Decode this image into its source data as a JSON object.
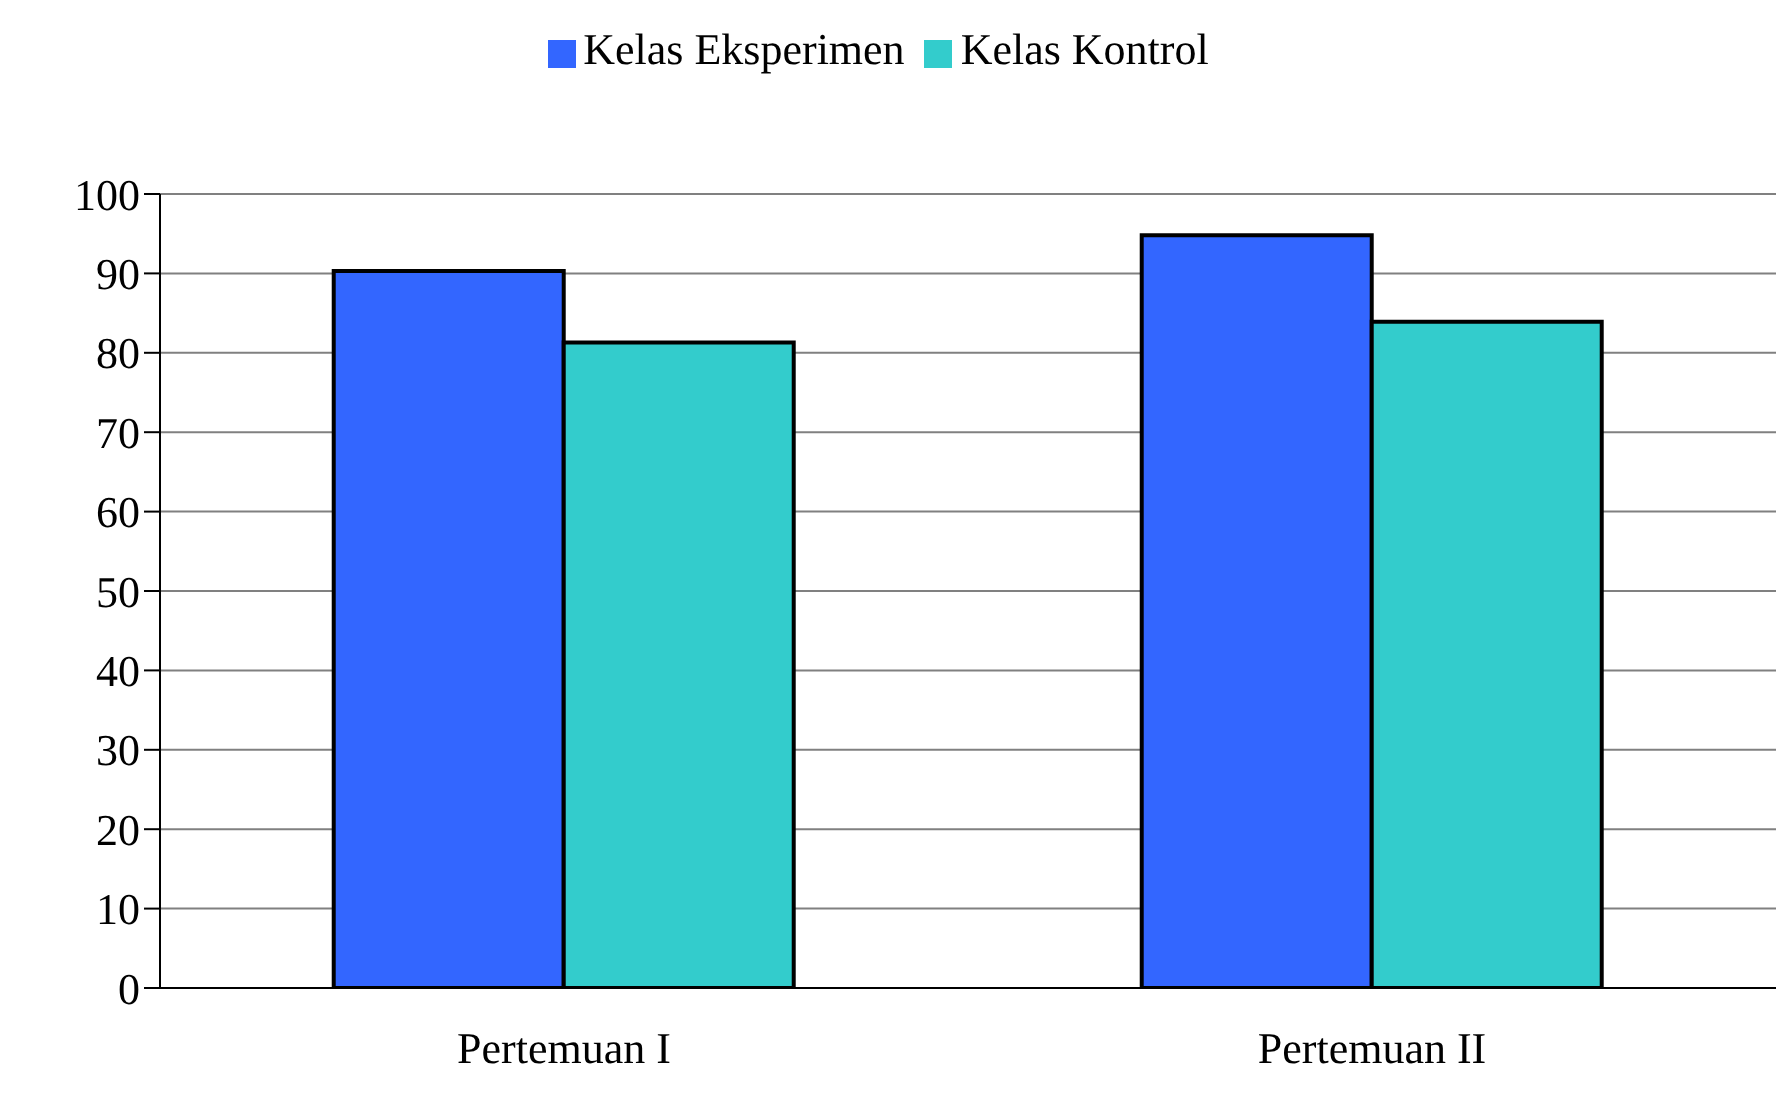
{
  "chart_data": {
    "type": "bar",
    "categories": [
      "Pertemuan I",
      "Pertemuan II"
    ],
    "series": [
      {
        "name": "Kelas Eksperimen",
        "color": "#3366ff",
        "values": [
          90.3,
          94.8
        ]
      },
      {
        "name": "Kelas Kontrol",
        "color": "#33cccc",
        "values": [
          81.3,
          83.9
        ]
      }
    ],
    "ylim": [
      0,
      100
    ],
    "yticks": [
      0,
      10,
      20,
      30,
      40,
      50,
      60,
      70,
      80,
      90,
      100
    ],
    "grid": "y",
    "legend": "top"
  }
}
